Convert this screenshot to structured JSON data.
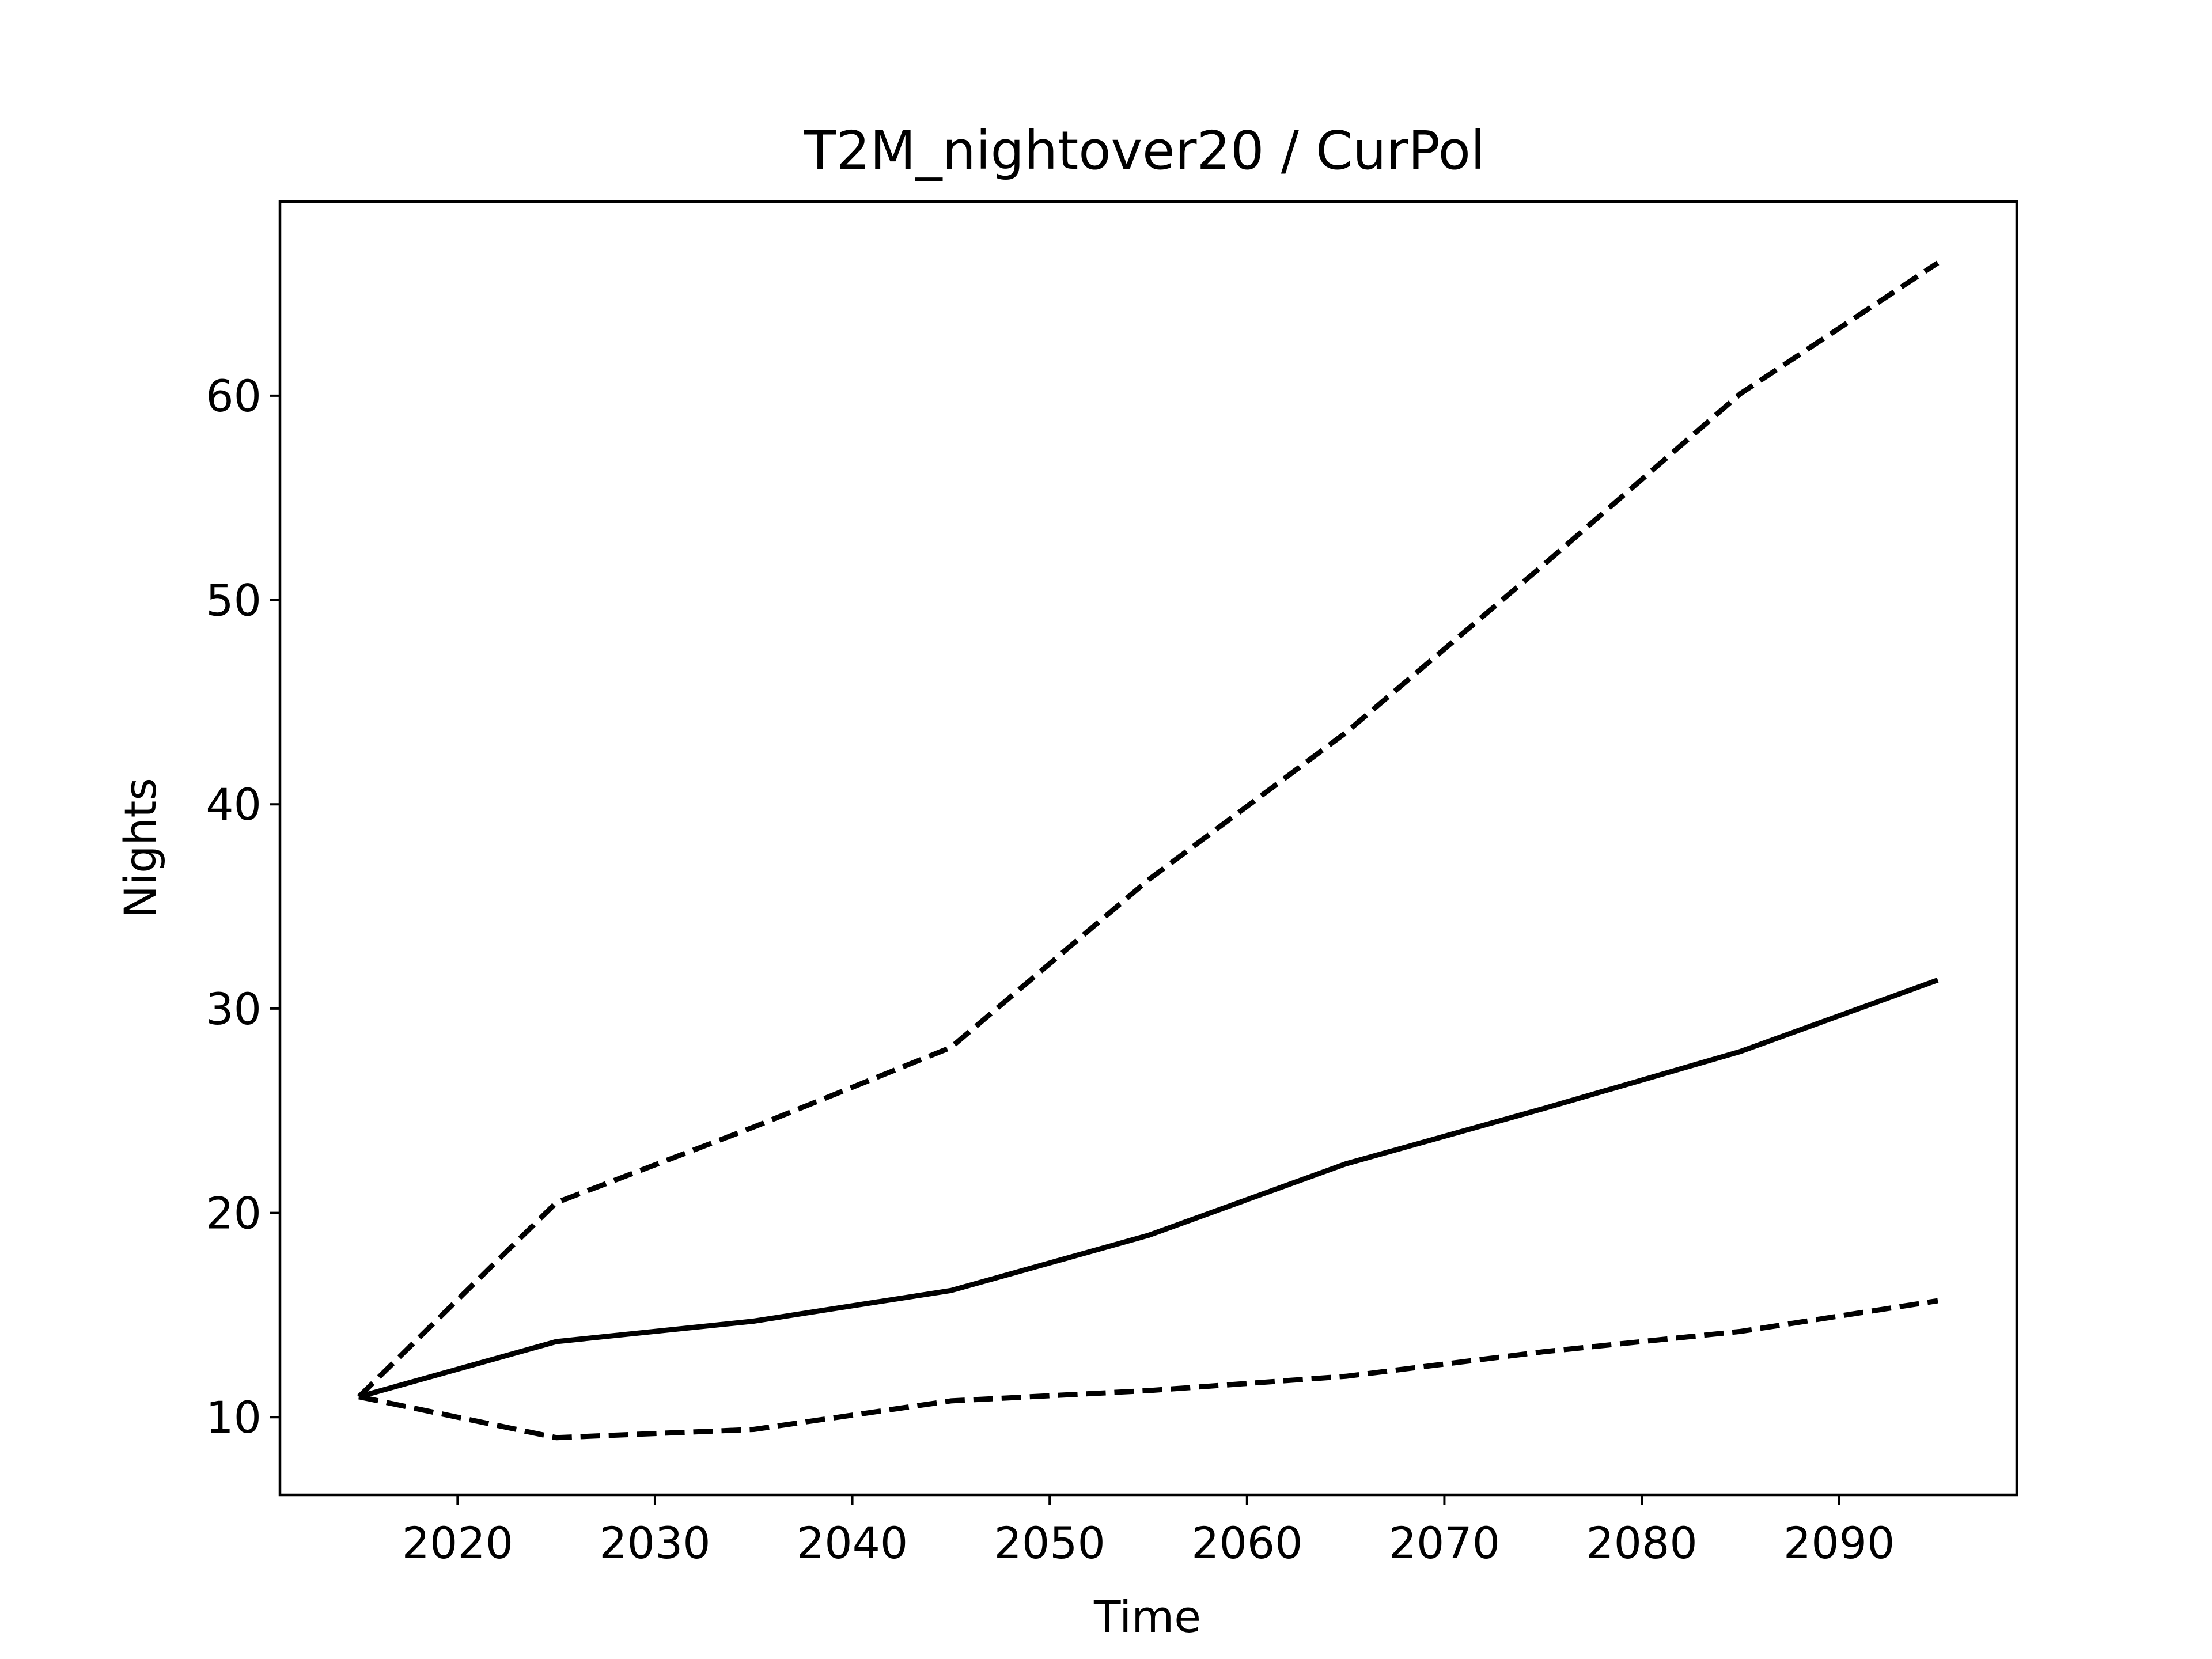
{
  "chart_data": {
    "type": "line",
    "title": "T2M_nightover20 / CurPol",
    "xlabel": "Time",
    "ylabel": "Nights",
    "xlim": [
      2011,
      2099
    ],
    "ylim": [
      6.2,
      69.5
    ],
    "x_ticks": [
      2020,
      2030,
      2040,
      2050,
      2060,
      2070,
      2080,
      2090
    ],
    "y_ticks": [
      10,
      20,
      30,
      40,
      50,
      60
    ],
    "grid": false,
    "legend": "none",
    "series": [
      {
        "style": "solid",
        "color": "#000000",
        "x": [
          2015,
          2025,
          2035,
          2045,
          2055,
          2065,
          2075,
          2085,
          2095
        ],
        "y": [
          11.0,
          13.7,
          14.7,
          16.2,
          18.9,
          22.4,
          25.1,
          27.9,
          31.4
        ]
      },
      {
        "style": "dashed",
        "color": "#000000",
        "x": [
          2015,
          2025,
          2035,
          2045,
          2055,
          2065,
          2075,
          2085,
          2095
        ],
        "y": [
          11.0,
          20.5,
          24.2,
          28.1,
          36.3,
          43.5,
          51.7,
          60.1,
          66.5
        ]
      },
      {
        "style": "dashed",
        "color": "#000000",
        "x": [
          2015,
          2025,
          2035,
          2045,
          2055,
          2065,
          2075,
          2085,
          2095
        ],
        "y": [
          11.0,
          9.0,
          9.4,
          10.8,
          11.3,
          12.0,
          13.2,
          14.2,
          15.7
        ]
      }
    ]
  }
}
